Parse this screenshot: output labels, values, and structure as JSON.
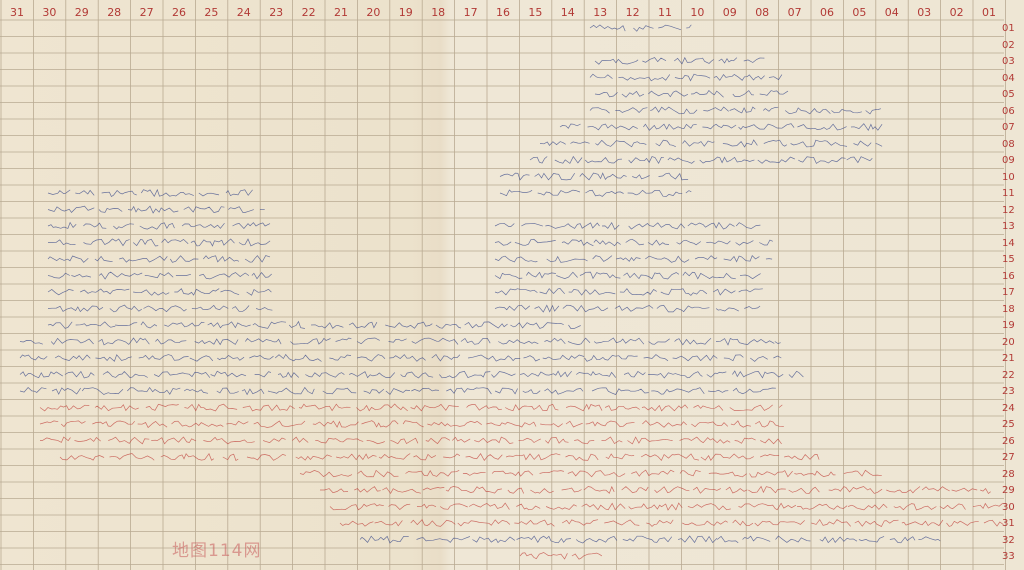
{
  "column_numbers": [
    "31",
    "30",
    "29",
    "28",
    "27",
    "26",
    "25",
    "24",
    "23",
    "22",
    "21",
    "20",
    "19",
    "18",
    "17",
    "16",
    "15",
    "14",
    "13",
    "12",
    "11",
    "10",
    "09",
    "08",
    "07",
    "06",
    "05",
    "04",
    "03",
    "02",
    "01"
  ],
  "row_numbers": [
    "01",
    "02",
    "03",
    "04",
    "05",
    "06",
    "07",
    "08",
    "09",
    "10",
    "11",
    "12",
    "13",
    "14",
    "15",
    "16",
    "17",
    "18",
    "19",
    "20",
    "21",
    "22",
    "23",
    "24",
    "25",
    "26",
    "27",
    "28",
    "29",
    "30",
    "31",
    "32",
    "33"
  ],
  "watermark": "地图114网",
  "colors": {
    "paper": "#efe6d4",
    "grid_line": "#b9aa92",
    "number_red": "#b23a36",
    "ink_blue": "#3a4a8a",
    "ink_red": "#c0443e"
  }
}
